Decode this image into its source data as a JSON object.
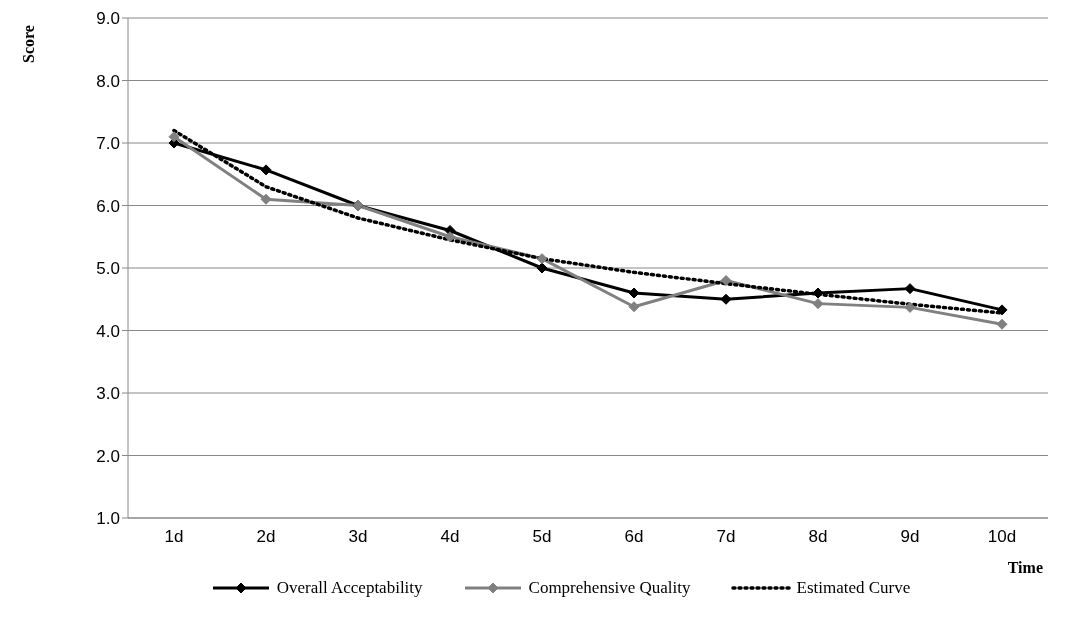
{
  "chart_data": {
    "type": "line",
    "xlabel": "Time",
    "ylabel": "Score",
    "categories": [
      "1d",
      "2d",
      "3d",
      "4d",
      "5d",
      "6d",
      "7d",
      "8d",
      "9d",
      "10d"
    ],
    "series": [
      {
        "name": "Overall Acceptability",
        "color": "#000000",
        "marker": "diamond",
        "line_style": "solid",
        "values": [
          7.0,
          6.57,
          6.0,
          5.6,
          5.0,
          4.6,
          4.5,
          4.6,
          4.67,
          4.33
        ]
      },
      {
        "name": "Comprehensive Quality",
        "color": "#808080",
        "marker": "diamond",
        "line_style": "solid",
        "values": [
          7.1,
          6.1,
          6.0,
          5.5,
          5.15,
          4.38,
          4.8,
          4.43,
          4.37,
          4.1
        ]
      },
      {
        "name": "Estimated Curve",
        "color": "#000000",
        "marker": "none",
        "line_style": "dotted",
        "values": [
          7.2,
          6.3,
          5.8,
          5.45,
          5.15,
          4.93,
          4.75,
          4.58,
          4.42,
          4.28
        ]
      }
    ],
    "ylim": [
      1.0,
      9.0
    ],
    "yticks": [
      {
        "value": 1,
        "label": "1.0"
      },
      {
        "value": 2,
        "label": "2.0"
      },
      {
        "value": 3,
        "label": "3.0"
      },
      {
        "value": 4,
        "label": "4.0"
      },
      {
        "value": 5,
        "label": "5.0"
      },
      {
        "value": 6,
        "label": "6.0"
      },
      {
        "value": 7,
        "label": "7.0"
      },
      {
        "value": 8,
        "label": "8.0"
      },
      {
        "value": 9,
        "label": "9.0"
      }
    ],
    "grid": "y",
    "legend": "bottom"
  }
}
